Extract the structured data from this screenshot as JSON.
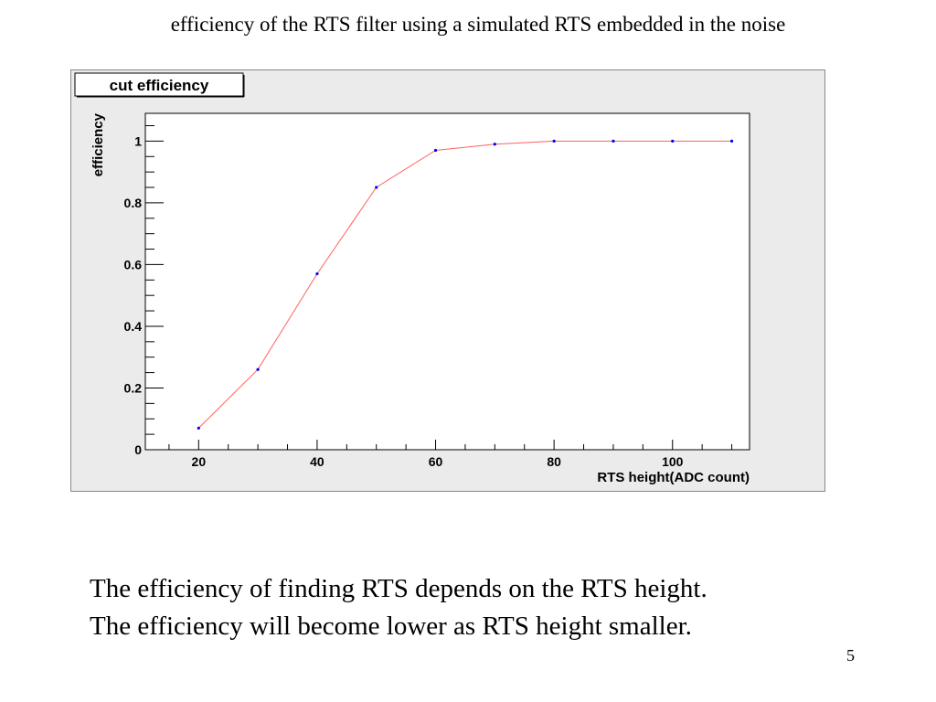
{
  "slide": {
    "title": "efficiency of the RTS filter using a simulated RTS embedded in the noise",
    "caption": "The efficiency of finding RTS depends on the RTS height.  The efficiency will become lower as RTS height smaller.",
    "page_number": "5"
  },
  "chart_data": {
    "type": "line",
    "title": "cut efficiency",
    "xlabel": "RTS height(ADC count)",
    "ylabel": "efficiency",
    "xlim": [
      11,
      113
    ],
    "ylim": [
      0,
      1.09
    ],
    "x_ticks": [
      20,
      40,
      60,
      80,
      100
    ],
    "y_ticks": [
      0,
      0.2,
      0.4,
      0.6,
      0.8,
      1
    ],
    "y_tick_labels": [
      "0",
      "0.2",
      "0.4",
      "0.6",
      "0.8",
      "1"
    ],
    "series": [
      {
        "x": [
          20,
          30,
          40,
          50,
          60,
          70,
          80,
          90,
          100,
          110
        ],
        "y": [
          0.07,
          0.26,
          0.57,
          0.85,
          0.97,
          0.99,
          1.0,
          1.0,
          1.0,
          1.0
        ],
        "line_color": "#ff6060",
        "marker_color": "#0000ff"
      }
    ],
    "grid": false,
    "legend": "none",
    "frame_background": "#ebebeb",
    "plot_background": "#ffffff"
  }
}
